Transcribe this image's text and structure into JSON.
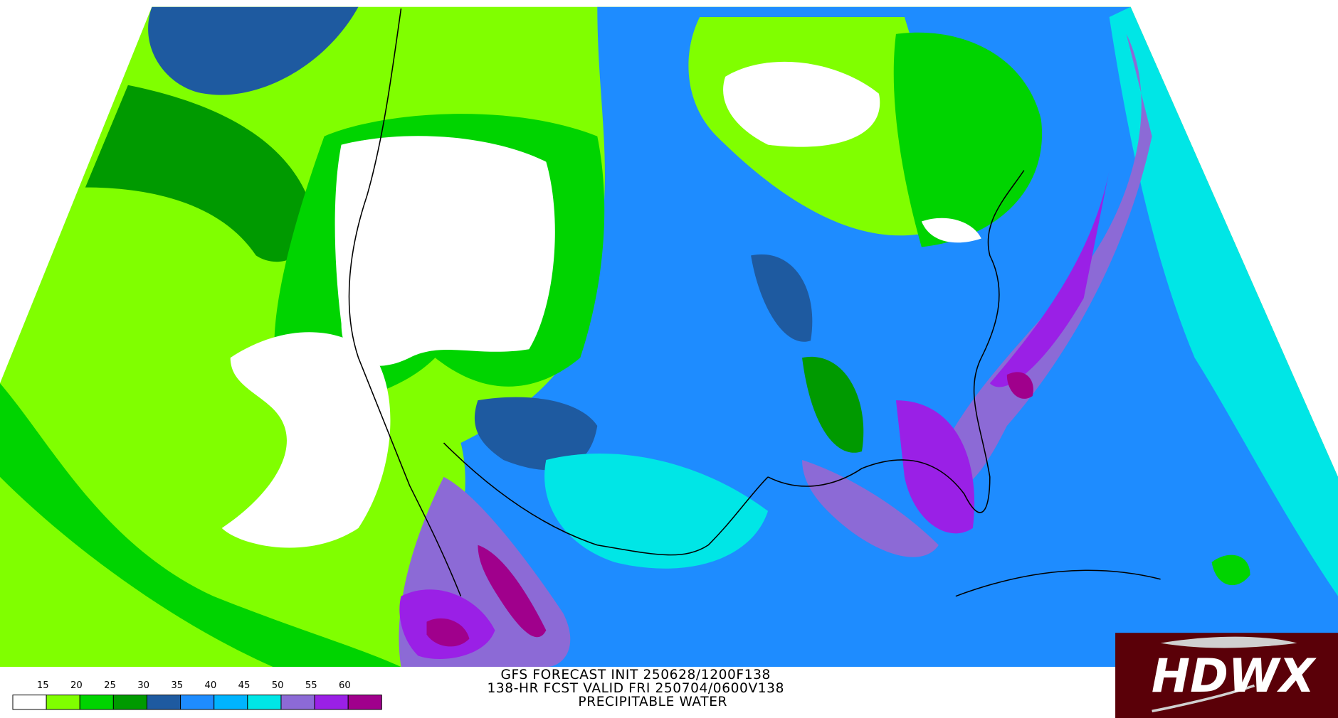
{
  "header": {
    "line1": "GFS FORECAST INIT 250628/1200F138",
    "line2": "138-HR FCST VALID FRI 250704/0600V138",
    "line3": "PRECIPITABLE WATER"
  },
  "legend": {
    "ticks": [
      15,
      20,
      25,
      30,
      35,
      40,
      45,
      50,
      55,
      60
    ],
    "colors": [
      "#ffffff",
      "#80ff00",
      "#00d400",
      "#009a00",
      "#1e5aa0",
      "#1e8cff",
      "#00b4ff",
      "#00e6e6",
      "#8c6ad6",
      "#9a20e6",
      "#a0008c"
    ]
  },
  "logo": {
    "text": "HDWX"
  }
}
